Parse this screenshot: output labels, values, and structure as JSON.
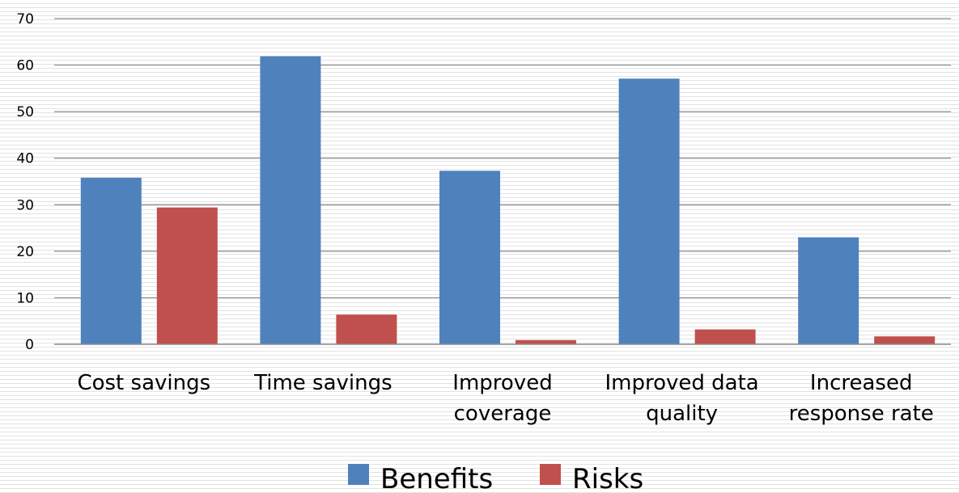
{
  "chart_data": {
    "type": "bar",
    "categories": [
      [
        "Cost savings"
      ],
      [
        "Time savings"
      ],
      [
        "Improved",
        "coverage"
      ],
      [
        "Improved data",
        "quality"
      ],
      [
        "Increased",
        "response rate"
      ]
    ],
    "series": [
      {
        "name": "Benefits",
        "values": [
          35.8,
          61.9,
          37.3,
          57.1,
          23.0
        ],
        "color": "#4F81BD"
      },
      {
        "name": "Risks",
        "values": [
          29.4,
          6.4,
          0.9,
          3.2,
          1.7
        ],
        "color": "#C0504D"
      }
    ],
    "y_ticks": [
      "0",
      "10",
      "20",
      "30",
      "40",
      "50",
      "60",
      "70"
    ],
    "ylim": [
      0,
      70
    ],
    "grid": true,
    "legend_position": "bottom-center",
    "title": "",
    "xlabel": "",
    "ylabel": ""
  }
}
